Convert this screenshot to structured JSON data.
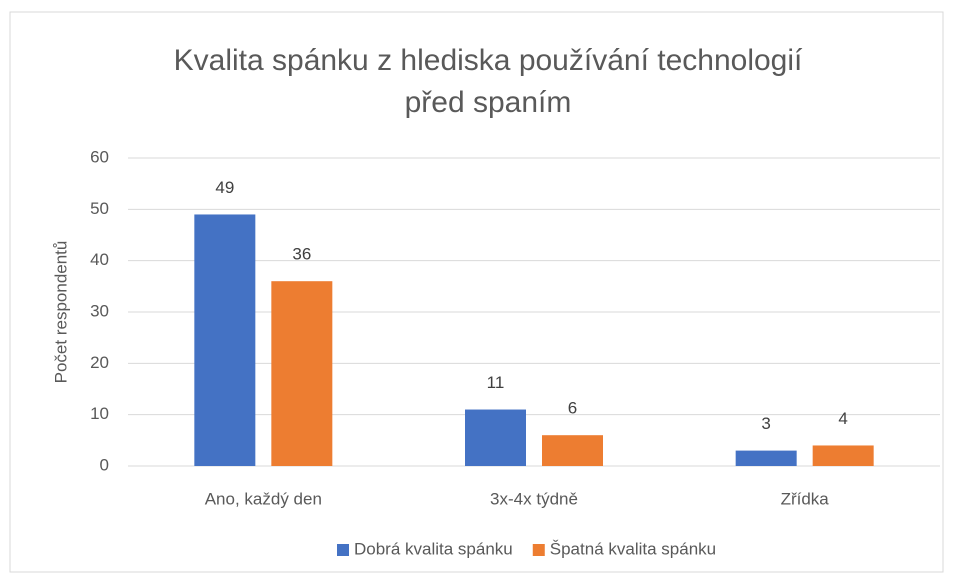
{
  "chart_data": {
    "type": "bar",
    "title": [
      "Kvalita spánku z hlediska používání technologií",
      "před spaním"
    ],
    "y_label": "Počet respondentů",
    "categories": [
      "Ano, každý den",
      "3x-4x týdně",
      "Zřídka"
    ],
    "series": [
      {
        "name": "Dobrá kvalita spánku",
        "color": "#4472c4",
        "values": [
          49,
          11,
          3
        ]
      },
      {
        "name": "Špatná kvalita spánku",
        "color": "#ed7d31",
        "values": [
          36,
          6,
          4
        ]
      }
    ],
    "ylim": [
      0,
      60
    ],
    "yticks": [
      0,
      10,
      20,
      30,
      40,
      50,
      60
    ],
    "grid": true,
    "legend": "bottom"
  }
}
